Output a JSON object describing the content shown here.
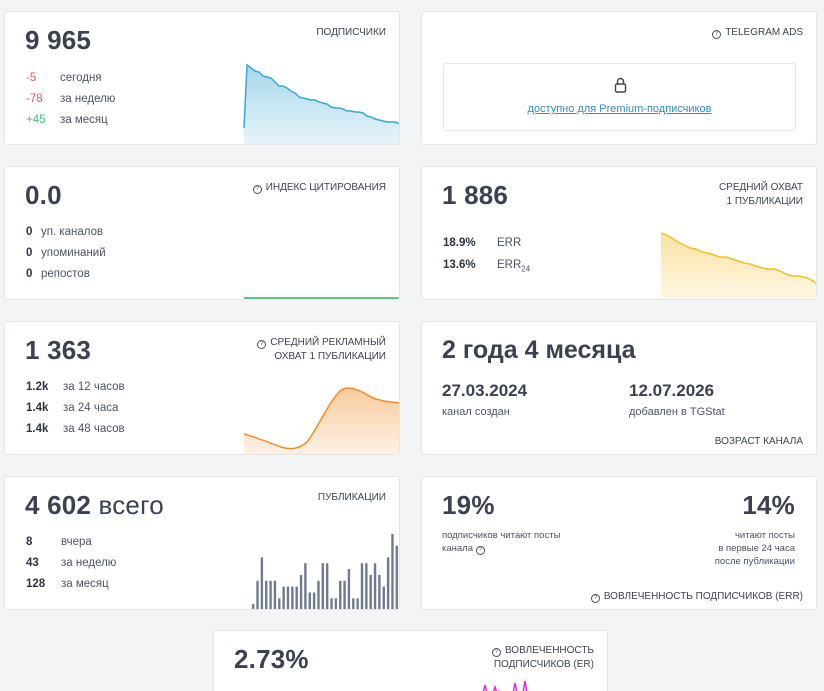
{
  "subscribers": {
    "value": "9 965",
    "label": "ПОДПИСЧИКИ",
    "rows": [
      {
        "value": "-5",
        "text": "сегодня"
      },
      {
        "value": "-78",
        "text": "за неделю"
      },
      {
        "value": "+45",
        "text": "за месяц"
      }
    ],
    "color": "#3aa8d0"
  },
  "ads": {
    "label": "TELEGRAM ADS",
    "locked_text": "доступно для Premium-подписчиков"
  },
  "citation": {
    "value": "0.0",
    "label": "ИНДЕКС ЦИТИРОВАНИЯ",
    "rows": [
      {
        "value": "0",
        "text": "уп. каналов"
      },
      {
        "value": "0",
        "text": "упоминаний"
      },
      {
        "value": "0",
        "text": "репостов"
      }
    ],
    "color": "#2fb25a"
  },
  "reach": {
    "value": "1 886",
    "label_line1": "СРЕДНИЙ ОХВАТ",
    "label_line2": "1 ПУБЛИКАЦИИ",
    "rows": [
      {
        "value": "18.9%",
        "text": "ERR",
        "sub": ""
      },
      {
        "value": "13.6%",
        "text": "ERR",
        "sub": "24"
      }
    ],
    "color": "#f3bf2c"
  },
  "ad_reach": {
    "value": "1 363",
    "label_line1": "СРЕДНИЙ РЕКЛАМНЫЙ",
    "label_line2": "ОХВАТ 1 ПУБЛИКАЦИИ",
    "rows": [
      {
        "value": "1.2k",
        "text": "за 12 часов"
      },
      {
        "value": "1.4k",
        "text": "за 24 часа"
      },
      {
        "value": "1.4k",
        "text": "за 48 часов"
      }
    ],
    "color": "#f28c28"
  },
  "age": {
    "title": "2 года 4 месяца",
    "created_date": "27.03.2024",
    "created_label": "канал создан",
    "added_date": "12.07.2026",
    "added_label": "добавлен в TGStat",
    "footer": "ВОЗРАСТ КАНАЛА"
  },
  "posts": {
    "value": "4 602",
    "value_suffix": " всего",
    "label": "ПУБЛИКАЦИИ",
    "rows": [
      {
        "value": "8",
        "text": "вчера"
      },
      {
        "value": "43",
        "text": "за неделю"
      },
      {
        "value": "128",
        "text": "за месяц"
      }
    ],
    "bars": [
      1,
      5,
      9,
      5,
      5,
      5,
      2,
      4,
      4,
      4,
      4,
      6,
      8,
      3,
      3,
      5,
      8,
      8,
      2,
      2,
      5,
      5,
      7,
      2,
      2,
      8,
      8,
      6,
      8,
      6,
      4,
      9,
      13,
      11
    ],
    "color": "#6e7b8e"
  },
  "engagement": {
    "left_value": "19%",
    "left_text1": "подписчиков читают посты",
    "left_text2": "канала",
    "right_value": "14%",
    "right_text1": "читают посты",
    "right_text2": "в первые 24 часа",
    "right_text3": "после публикации",
    "footer": "ВОВЛЕЧЕННОСТЬ ПОДПИСЧИКОВ (ERR)"
  },
  "er": {
    "value": "2.73%",
    "label_line1": "ВОВЛЕЧЕННОСТЬ",
    "label_line2": "ПОДПИСЧИКОВ (ER)",
    "color": "#d62ee0"
  }
}
